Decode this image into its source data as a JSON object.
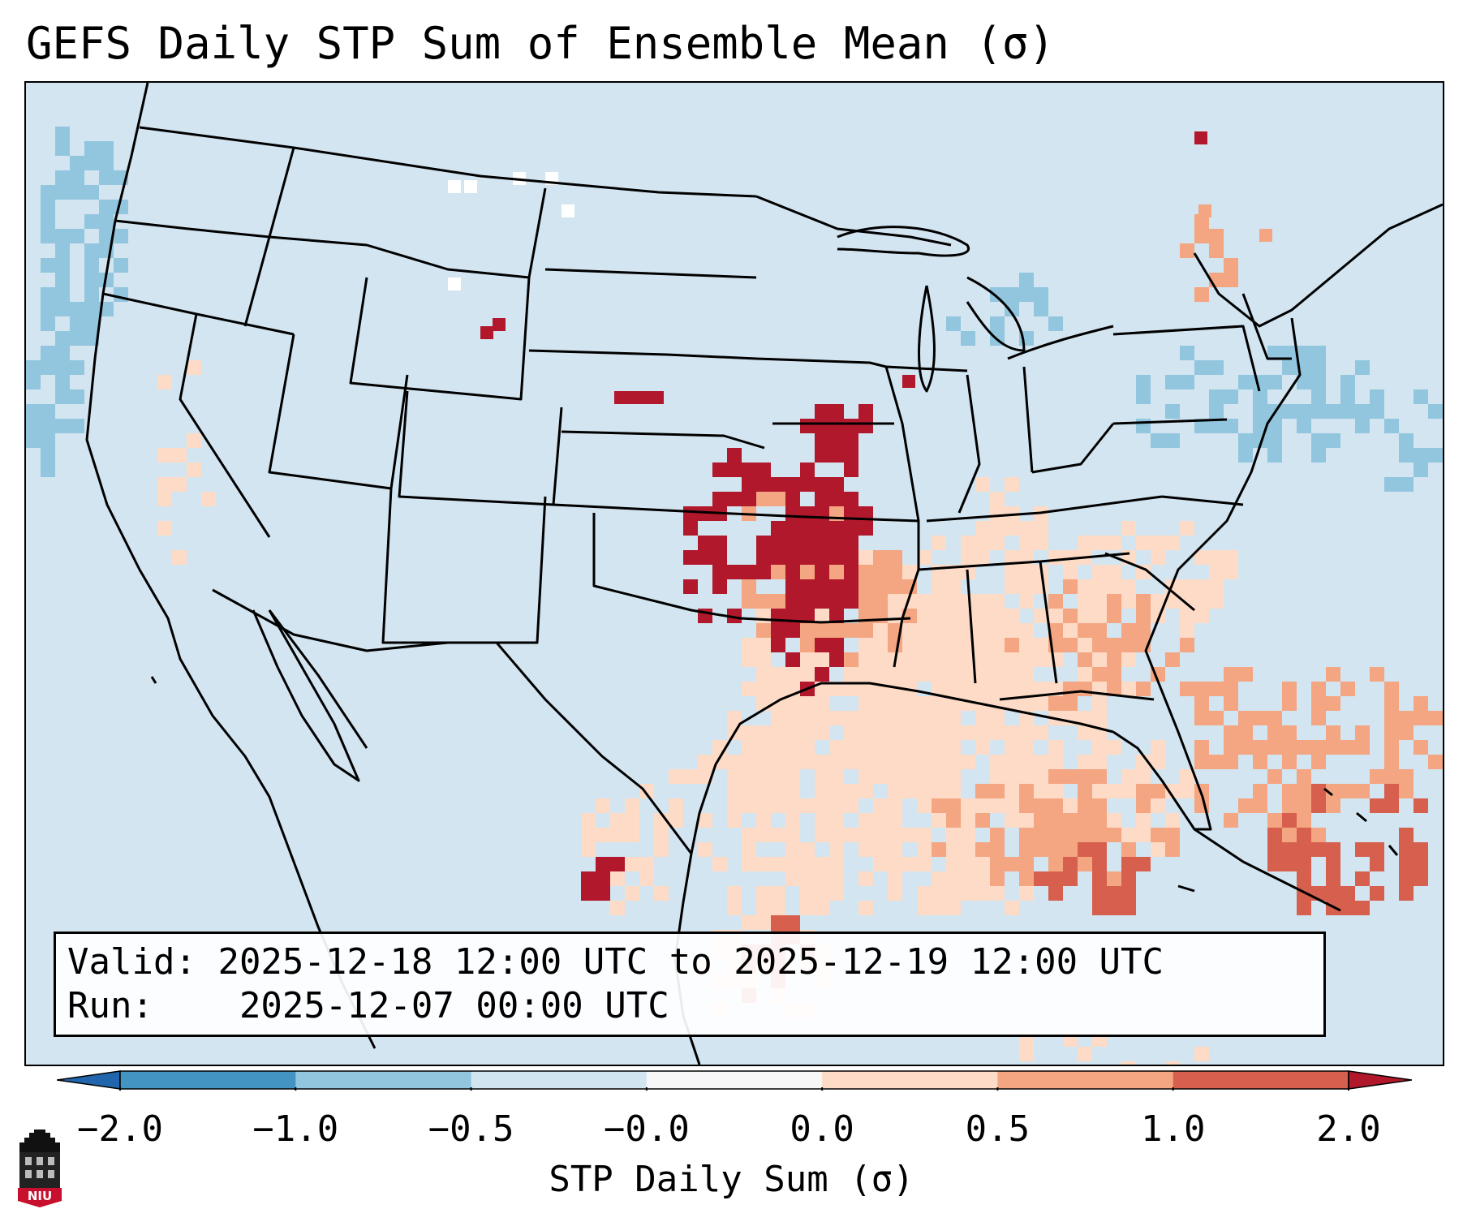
{
  "title": "GEFS Daily STP Sum of Ensemble Mean (σ)",
  "info": {
    "valid_label": "Valid:",
    "valid_value": "2025-12-18 12:00 UTC to 2025-12-19 12:00 UTC",
    "run_label": "Run:",
    "run_value": "2025-12-07 00:00 UTC"
  },
  "colorbar": {
    "label": "STP Daily Sum (σ)",
    "ticks": [
      "−2.0",
      "−1.0",
      "−0.5",
      "−0.0",
      "0.0",
      "0.5",
      "1.0",
      "2.0"
    ],
    "bins": [
      {
        "from": "−2.0",
        "to": "−1.0",
        "color": "#4393c3"
      },
      {
        "from": "−1.0",
        "to": "−0.5",
        "color": "#92c5de"
      },
      {
        "from": "−0.5",
        "to": "−0.0",
        "color": "#d1e5f0"
      },
      {
        "from": "−0.0",
        "to": "0.0",
        "color": "#f7f7f7"
      },
      {
        "from": "0.0",
        "to": "0.5",
        "color": "#fddbc7"
      },
      {
        "from": "0.5",
        "to": "1.0",
        "color": "#f4a582"
      },
      {
        "from": "1.0",
        "to": "2.0",
        "color": "#d6604d"
      }
    ],
    "under_color": "#2166ac",
    "over_color": "#b2182b"
  },
  "field": {
    "background_color": "#d2e5f0",
    "pattern": "highest STP sums (above 2.0σ) over Nebraska, Kansas, Oklahoma, Iowa and northwest Texas; elevated values across the Southeast, Gulf Coast and Gulf of Mexico; below-normal values over the Great Lakes, Northeast and Pacific coast"
  },
  "logo": {
    "text": "NIU",
    "icon": "niu-huskie-tower-logo"
  }
}
